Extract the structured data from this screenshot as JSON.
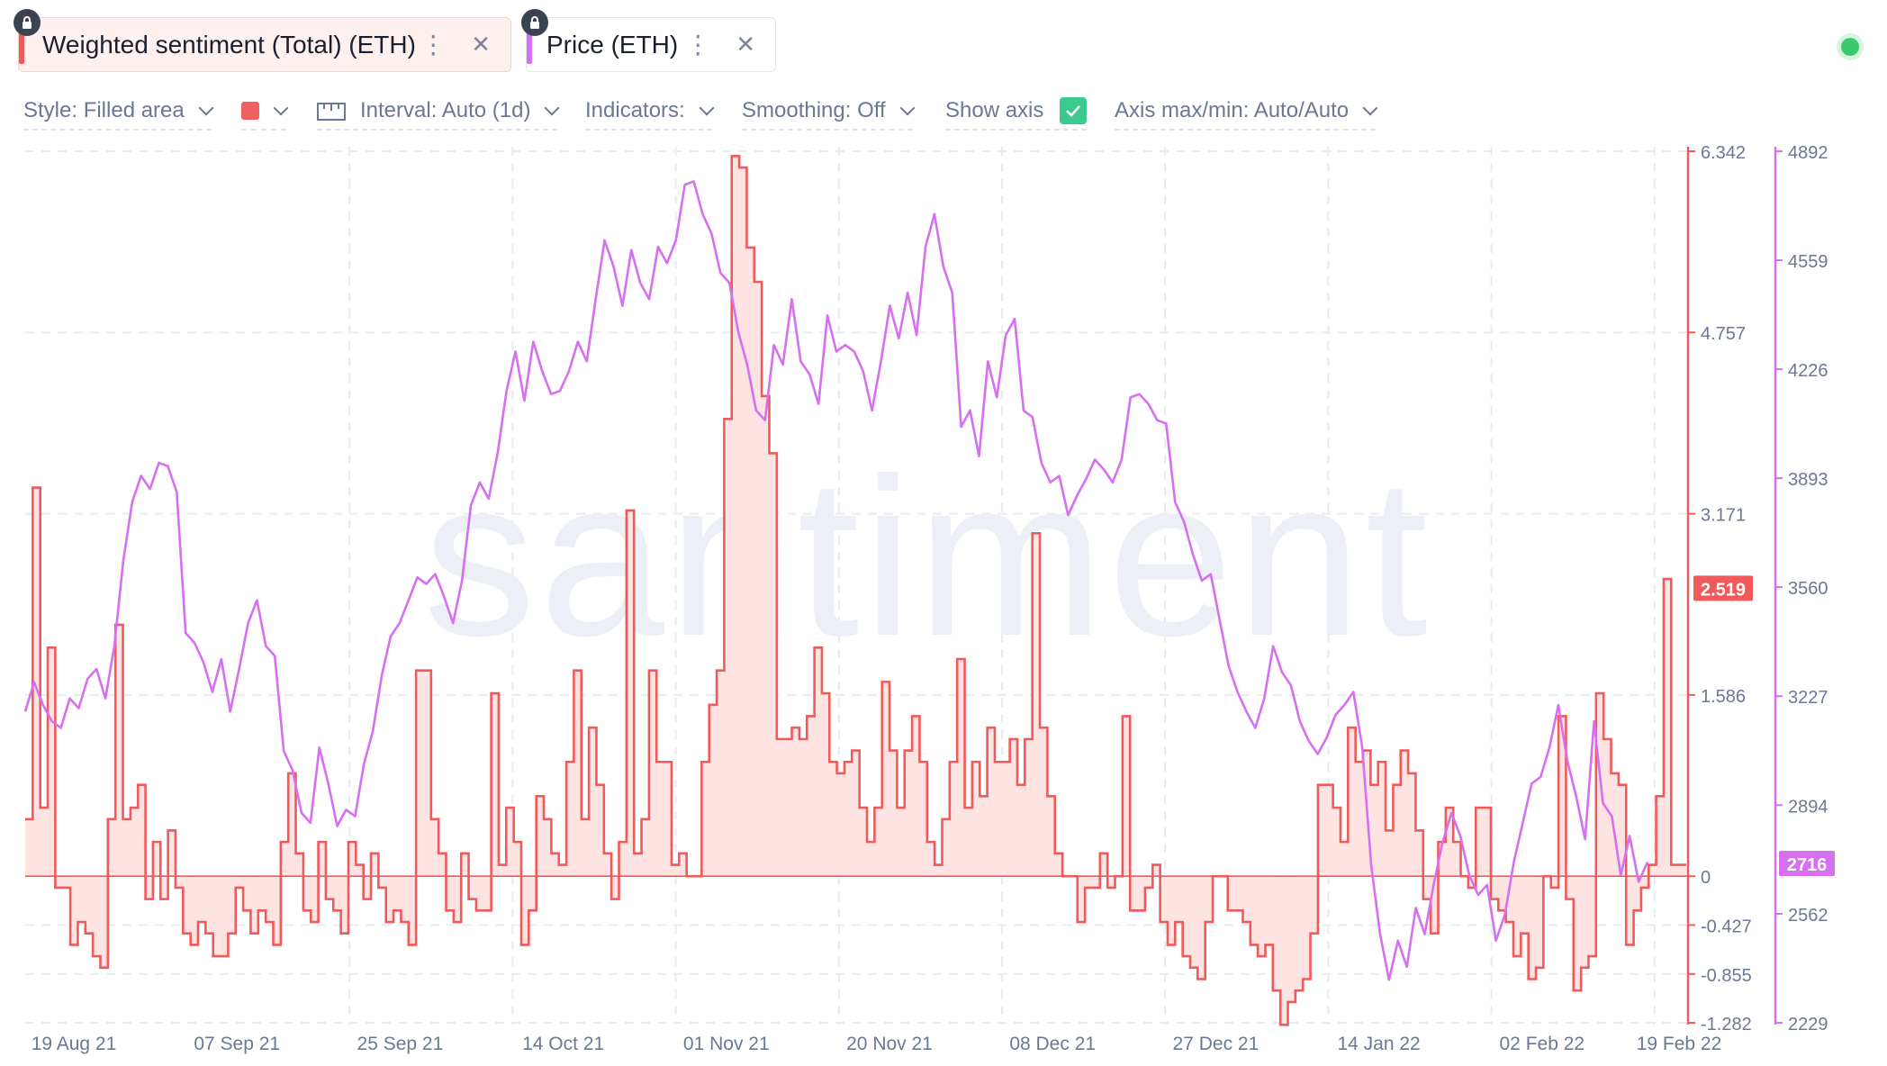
{
  "metrics": [
    {
      "label": "Weighted sentiment (Total) (ETH)",
      "color": "#f05a5a"
    },
    {
      "label": "Price (ETH)",
      "color": "#d66ff0"
    }
  ],
  "toolbar": {
    "style": "Style: Filled area",
    "color_swatch": "#ee6161",
    "interval": "Interval: Auto (1d)",
    "indicators": "Indicators:",
    "smoothing": "Smoothing: Off",
    "show_axis": "Show axis",
    "axis_maxmin": "Axis max/min: Auto/Auto"
  },
  "watermark": "santiment",
  "chart_data": {
    "type": "line",
    "x_ticks": [
      "19 Aug 21",
      "07 Sep 21",
      "25 Sep 21",
      "14 Oct 21",
      "01 Nov 21",
      "20 Nov 21",
      "08 Dec 21",
      "27 Dec 21",
      "14 Jan 22",
      "02 Feb 22",
      "19 Feb 22"
    ],
    "sentiment_axis": {
      "ticks": [
        "6.342",
        "4.757",
        "3.171",
        "1.586",
        "0",
        "-0.427",
        "-0.855",
        "-1.282"
      ],
      "min": -1.282,
      "max": 6.342,
      "current": "2.519",
      "color": "#f05a5a"
    },
    "price_axis": {
      "ticks": [
        "4892",
        "4559",
        "4226",
        "3893",
        "3560",
        "3227",
        "2894",
        "2562",
        "2229"
      ],
      "min": 2229,
      "max": 4892,
      "current": "2716",
      "color": "#d66ff0"
    },
    "series": [
      {
        "name": "Weighted sentiment (Total) (ETH)",
        "style": "filled-area-step",
        "color": "#f05a5a",
        "fill": "#fde4e2",
        "values": [
          0.5,
          3.4,
          0.6,
          2.0,
          -0.1,
          -0.1,
          -0.6,
          -0.4,
          -0.5,
          -0.7,
          -0.8,
          0.5,
          2.2,
          0.5,
          0.6,
          0.8,
          -0.2,
          0.3,
          -0.2,
          0.4,
          -0.1,
          -0.5,
          -0.6,
          -0.4,
          -0.5,
          -0.7,
          -0.7,
          -0.5,
          -0.1,
          -0.3,
          -0.5,
          -0.3,
          -0.4,
          -0.6,
          0.3,
          0.9,
          0.2,
          -0.3,
          -0.4,
          0.3,
          -0.2,
          -0.3,
          -0.5,
          0.3,
          0.1,
          -0.2,
          0.2,
          -0.1,
          -0.4,
          -0.3,
          -0.4,
          -0.6,
          1.8,
          1.8,
          0.5,
          0.2,
          -0.3,
          -0.4,
          0.2,
          -0.2,
          -0.3,
          -0.3,
          1.6,
          0.1,
          0.6,
          0.3,
          -0.6,
          -0.3,
          0.7,
          0.5,
          0.2,
          0.1,
          1.0,
          1.8,
          0.5,
          1.3,
          0.8,
          0.2,
          -0.2,
          0.3,
          3.2,
          0.2,
          0.5,
          1.8,
          1.0,
          1.0,
          0.1,
          0.2,
          0.0,
          0.0,
          1.0,
          1.5,
          1.8,
          4.0,
          6.3,
          6.2,
          5.5,
          5.2,
          4.2,
          3.7,
          1.2,
          1.2,
          1.3,
          1.2,
          1.4,
          2.0,
          1.6,
          1.0,
          0.9,
          1.0,
          1.1,
          0.6,
          0.3,
          0.6,
          1.7,
          1.1,
          0.6,
          1.1,
          1.4,
          1.0,
          0.3,
          0.1,
          0.5,
          1.0,
          1.9,
          0.6,
          1.0,
          0.7,
          1.3,
          1.0,
          1.0,
          1.2,
          0.8,
          1.2,
          3.0,
          1.3,
          0.7,
          0.2,
          0.0,
          0.0,
          -0.4,
          -0.1,
          -0.1,
          0.2,
          -0.1,
          0.0,
          1.4,
          -0.3,
          -0.3,
          -0.1,
          0.1,
          -0.4,
          -0.6,
          -0.4,
          -0.7,
          -0.8,
          -0.9,
          -0.4,
          0.0,
          0.0,
          -0.3,
          -0.3,
          -0.4,
          -0.6,
          -0.7,
          -0.6,
          -1.0,
          -1.3,
          -1.1,
          -1.0,
          -0.9,
          -0.5,
          0.8,
          0.8,
          0.6,
          0.3,
          1.3,
          1.0,
          1.1,
          0.8,
          1.0,
          0.4,
          0.8,
          1.1,
          0.9,
          0.4,
          -0.2,
          -0.5,
          0.3,
          0.6,
          0.3,
          0.0,
          -0.1,
          0.6,
          0.6,
          -0.2,
          -0.3,
          -0.4,
          -0.7,
          -0.5,
          -0.9,
          -0.8,
          0.0,
          -0.1,
          1.4,
          -0.2,
          -1.0,
          -0.8,
          -0.7,
          1.6,
          1.2,
          0.9,
          0.8,
          -0.6,
          -0.3,
          -0.1,
          0.1,
          0.7,
          2.6,
          0.1,
          0.1
        ]
      },
      {
        "name": "Price (ETH)",
        "style": "line",
        "color": "#d66ff0",
        "values": [
          3180,
          3270,
          3200,
          3150,
          3130,
          3220,
          3190,
          3280,
          3310,
          3220,
          3380,
          3640,
          3820,
          3900,
          3860,
          3940,
          3930,
          3850,
          3420,
          3390,
          3330,
          3240,
          3340,
          3180,
          3310,
          3450,
          3520,
          3380,
          3350,
          3060,
          3000,
          2870,
          2840,
          3070,
          2960,
          2830,
          2880,
          2860,
          3020,
          3120,
          3290,
          3410,
          3450,
          3520,
          3590,
          3570,
          3600,
          3530,
          3450,
          3580,
          3810,
          3880,
          3830,
          3970,
          4160,
          4280,
          4130,
          4310,
          4220,
          4150,
          4160,
          4220,
          4310,
          4250,
          4440,
          4620,
          4540,
          4420,
          4590,
          4490,
          4440,
          4600,
          4550,
          4620,
          4790,
          4800,
          4700,
          4640,
          4520,
          4490,
          4340,
          4240,
          4100,
          4070,
          4300,
          4240,
          4440,
          4250,
          4210,
          4120,
          4390,
          4280,
          4300,
          4280,
          4220,
          4100,
          4250,
          4420,
          4320,
          4460,
          4330,
          4600,
          4700,
          4540,
          4460,
          4050,
          4100,
          3960,
          4250,
          4140,
          4330,
          4380,
          4100,
          4080,
          3940,
          3880,
          3900,
          3780,
          3840,
          3890,
          3950,
          3920,
          3880,
          3950,
          4140,
          4150,
          4120,
          4070,
          4060,
          3820,
          3760,
          3660,
          3580,
          3600,
          3460,
          3320,
          3240,
          3180,
          3130,
          3220,
          3380,
          3300,
          3260,
          3150,
          3090,
          3050,
          3100,
          3170,
          3200,
          3240,
          3070,
          2710,
          2500,
          2360,
          2480,
          2400,
          2580,
          2500,
          2650,
          2780,
          2870,
          2800,
          2680,
          2620,
          2650,
          2480,
          2560,
          2720,
          2840,
          2960,
          2980,
          3070,
          3200,
          3030,
          2920,
          2790,
          3150,
          2900,
          2860,
          2680,
          2800,
          2660,
          2720
        ]
      }
    ]
  }
}
